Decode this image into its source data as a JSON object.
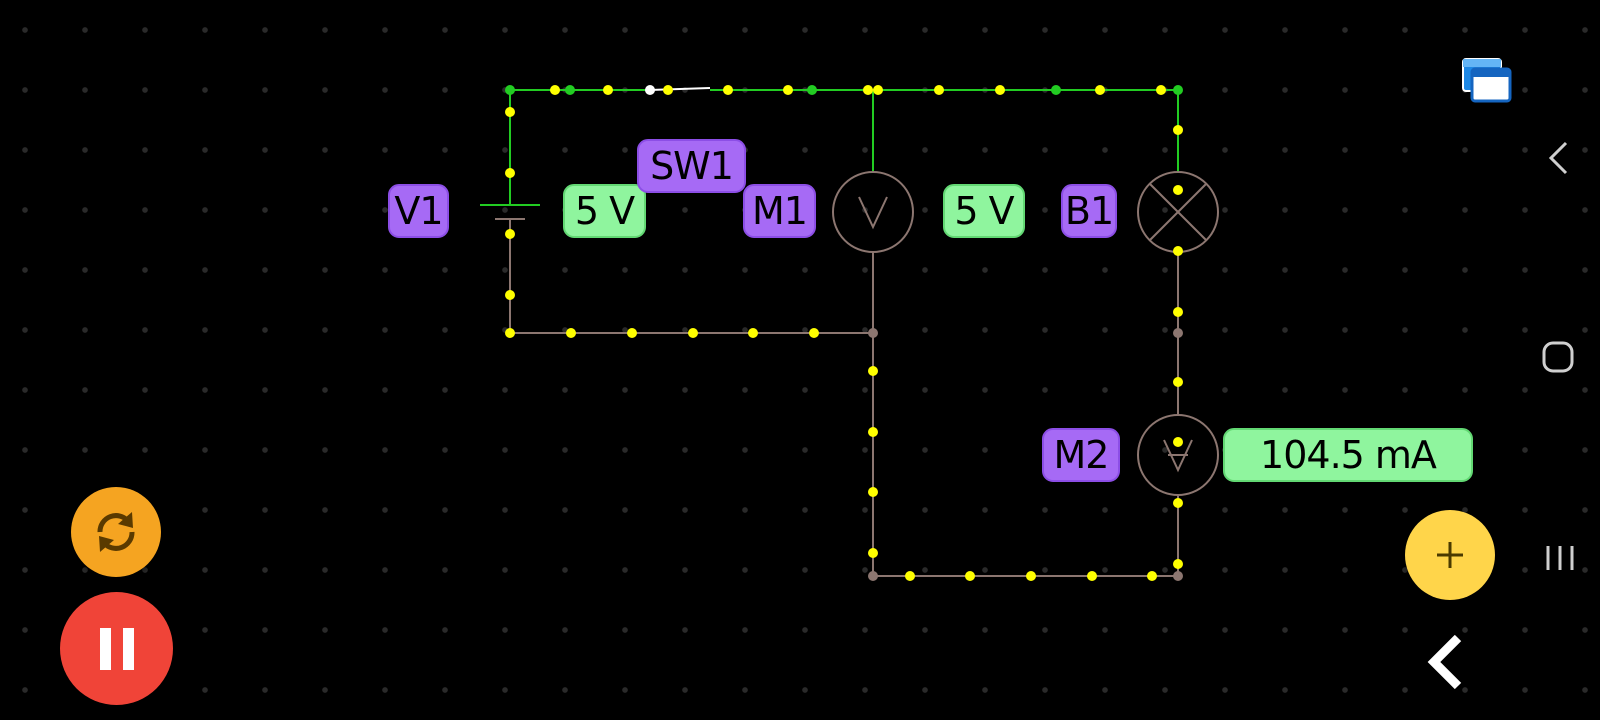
{
  "circuit": {
    "labels": {
      "v1": "V1",
      "sw1": "SW1",
      "m1": "M1",
      "b1": "B1",
      "m2": "M2"
    },
    "values": {
      "v1_voltage": "5 V",
      "m1_voltage": "5 V",
      "m2_current": "104.5 mA"
    },
    "colors": {
      "live_wire": "#22cc22",
      "idle_wire": "#8c7670",
      "current_dot": "#ffff00",
      "label_bg": "#a66af5",
      "value_bg": "#8ff59e"
    }
  },
  "controls": {
    "refresh": {
      "icon": "refresh-icon",
      "color": "#f5a421"
    },
    "pause": {
      "icon": "pause-icon",
      "color": "#f04438"
    },
    "add": {
      "icon": "plus-icon",
      "color": "#ffd54a"
    },
    "collapse": {
      "icon": "chevron-left-icon"
    }
  },
  "system_nav": {
    "multiwindow": "multiwindow-icon",
    "back": "back-icon",
    "home": "home-icon",
    "recents": "recents-icon"
  }
}
